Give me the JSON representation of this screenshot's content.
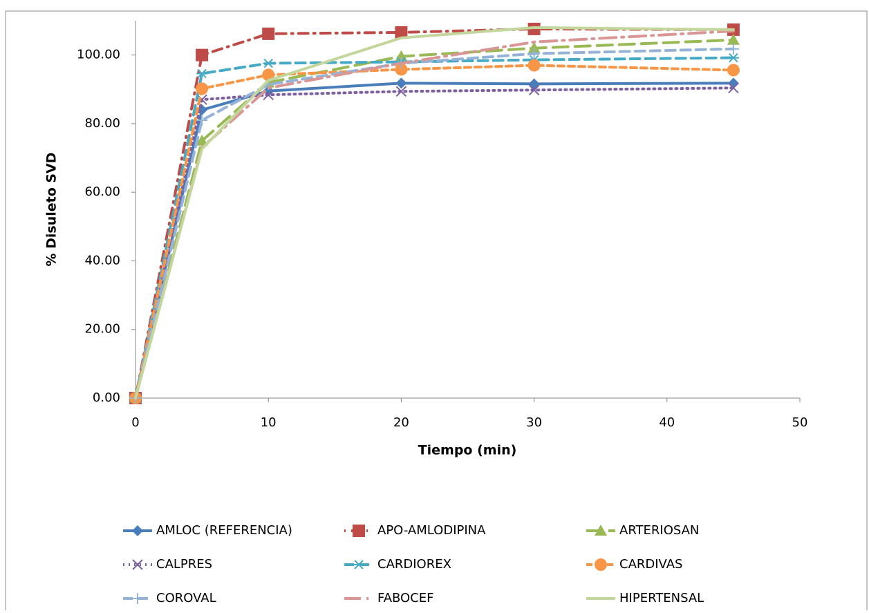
{
  "chart_data": {
    "type": "line",
    "xlabel": "Tiempo (min)",
    "ylabel": "% Disuleto SVD",
    "x": [
      0,
      5,
      10,
      20,
      30,
      45
    ],
    "xlim": [
      0,
      50
    ],
    "xticks": [
      0,
      10,
      20,
      30,
      40,
      50
    ],
    "ylim": [
      0,
      110
    ],
    "yticks": [
      {
        "value": 0,
        "label": "0.00"
      },
      {
        "value": 20,
        "label": "20.00"
      },
      {
        "value": 40,
        "label": "40.00"
      },
      {
        "value": 60,
        "label": "60.00"
      },
      {
        "value": 80,
        "label": "80.00"
      },
      {
        "value": 100,
        "label": "100.00"
      }
    ],
    "grid": false,
    "legend": "bottom",
    "series": [
      {
        "name": "AMLOC (REFERENCIA)",
        "color": "#4a7ebb",
        "dash": "solid",
        "marker": "diamond",
        "values": [
          0,
          84,
          89.5,
          91.8,
          91.6,
          91.8
        ]
      },
      {
        "name": "APO-AMLODIPINA",
        "color": "#be4b48",
        "dash": "dashdot",
        "marker": "square",
        "values": [
          0,
          100,
          106.2,
          106.6,
          107.6,
          107.4
        ]
      },
      {
        "name": "ARTERIOSAN",
        "color": "#98b954",
        "dash": "longdash",
        "marker": "triangle",
        "values": [
          0,
          75,
          92,
          99.6,
          102,
          104.4
        ]
      },
      {
        "name": "CALPRES",
        "color": "#7d60a0",
        "dash": "dot",
        "marker": "x",
        "values": [
          0,
          87,
          88.4,
          89.4,
          89.8,
          90.4
        ]
      },
      {
        "name": "CARDIOREX",
        "color": "#46aac5",
        "dash": "dash",
        "marker": "star",
        "values": [
          0,
          94.6,
          97.6,
          98,
          98.6,
          99.2
        ]
      },
      {
        "name": "CARDIVAS",
        "color": "#f79646",
        "dash": "shortdash",
        "marker": "circle",
        "values": [
          0,
          90.2,
          94.2,
          95.8,
          97,
          95.6
        ]
      },
      {
        "name": "COROVAL",
        "color": "#95b3d7",
        "dash": "dash",
        "marker": "plus",
        "values": [
          0,
          81,
          91.4,
          97.6,
          100.4,
          101.8
        ]
      },
      {
        "name": "FABOCEF",
        "color": "#d99694",
        "dash": "longdashdot",
        "marker": "none",
        "values": [
          0,
          73,
          90.4,
          97.6,
          103.8,
          107
        ]
      },
      {
        "name": "HIPERTENSAL",
        "color": "#c3d69b",
        "dash": "solid",
        "marker": "none",
        "values": [
          0,
          72.6,
          92.6,
          105,
          108,
          107.4
        ]
      }
    ]
  }
}
